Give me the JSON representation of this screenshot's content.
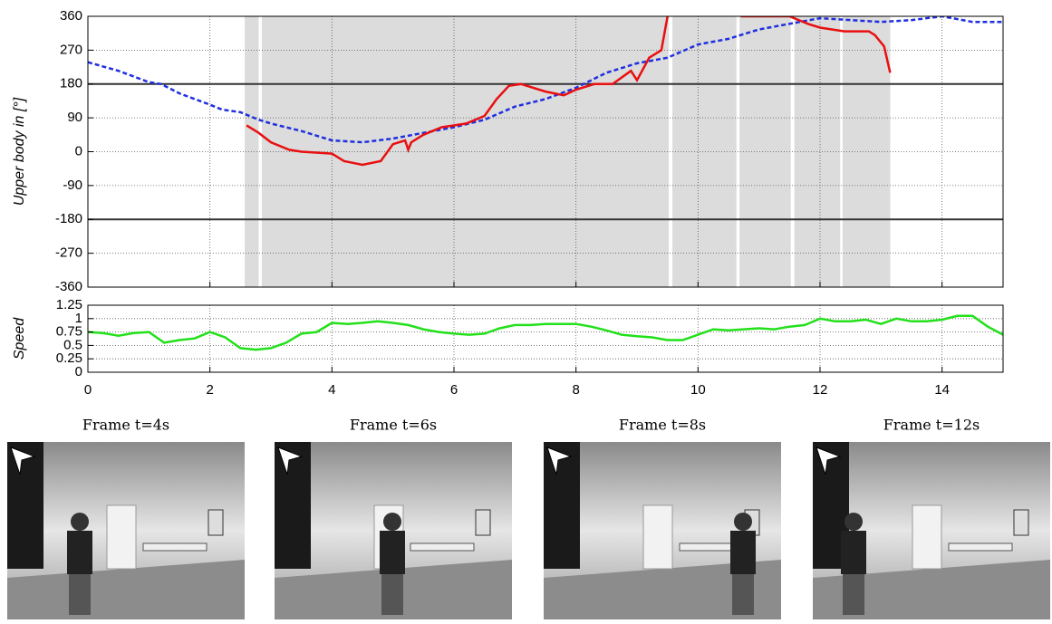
{
  "chart_data": [
    {
      "type": "line",
      "ylabel": "Upper body in [°]",
      "xlim": [
        0,
        15
      ],
      "xticks": [
        0,
        2,
        4,
        6,
        8,
        10,
        12,
        14
      ],
      "ylim": [
        -360,
        360
      ],
      "yticks": [
        -360,
        -270,
        -180,
        -90,
        0,
        90,
        180,
        270,
        360
      ],
      "reference_lines": [
        -180,
        180
      ],
      "grid": true,
      "shaded_intervals": [
        [
          2.57,
          2.8
        ],
        [
          2.85,
          9.52
        ],
        [
          9.58,
          10.63
        ],
        [
          10.68,
          11.52
        ],
        [
          11.58,
          12.33
        ],
        [
          12.37,
          13.15
        ]
      ],
      "shade_color": "#dcdcdc",
      "series": [
        {
          "color": "#1f2fe0",
          "dash": true,
          "x": [
            0,
            0.5,
            1,
            1.2,
            1.5,
            2,
            2.2,
            2.5,
            2.8,
            3,
            3.5,
            4,
            4.5,
            5,
            5.5,
            6,
            6.5,
            7,
            7.5,
            8,
            8.5,
            9,
            9.5,
            10,
            10.5,
            11,
            11.5,
            12,
            12.5,
            13,
            13.5,
            14,
            14.5,
            15
          ],
          "values": [
            238,
            215,
            185,
            180,
            155,
            125,
            112,
            105,
            85,
            75,
            55,
            30,
            25,
            35,
            50,
            65,
            85,
            120,
            140,
            170,
            210,
            235,
            250,
            285,
            300,
            325,
            340,
            355,
            350,
            345,
            350,
            360,
            345,
            345
          ]
        },
        {
          "color": "#e81010",
          "dash": false,
          "x": [
            2.6,
            2.8,
            3,
            3.3,
            3.5,
            4,
            4.2,
            4.5,
            4.8,
            5,
            5.2,
            5.25,
            5.3,
            5.5,
            5.8,
            6.2,
            6.5,
            6.7,
            6.9,
            7.1,
            7.5,
            7.8,
            8,
            8.3,
            8.6,
            8.9,
            9.0,
            9.2,
            9.4,
            9.5,
            10.3,
            10.7,
            10.9,
            11.5,
            11.8,
            12,
            12.4,
            12.8,
            12.9,
            13.05,
            13.15
          ],
          "values": [
            70,
            50,
            25,
            5,
            0,
            -5,
            -25,
            -35,
            -25,
            20,
            30,
            5,
            25,
            45,
            65,
            75,
            95,
            140,
            175,
            180,
            160,
            150,
            165,
            180,
            180,
            215,
            190,
            250,
            270,
            360,
            null,
            360,
            360,
            360,
            340,
            330,
            320,
            320,
            310,
            280,
            210
          ]
        }
      ]
    },
    {
      "type": "line",
      "ylabel": "Speed",
      "xlim": [
        0,
        15
      ],
      "xticks": [
        0,
        2,
        4,
        6,
        8,
        10,
        12,
        14
      ],
      "ylim": [
        0,
        1.25
      ],
      "yticks": [
        0,
        0.25,
        0.5,
        0.75,
        1,
        1.25
      ],
      "grid": true,
      "series": [
        {
          "color": "#22e01a",
          "dash": false,
          "x": [
            0,
            0.25,
            0.5,
            0.75,
            1,
            1.25,
            1.5,
            1.75,
            2,
            2.25,
            2.5,
            2.75,
            3,
            3.25,
            3.5,
            3.75,
            4,
            4.25,
            4.5,
            4.75,
            5,
            5.25,
            5.5,
            5.75,
            6,
            6.25,
            6.5,
            6.75,
            7,
            7.25,
            7.5,
            7.75,
            8,
            8.25,
            8.5,
            8.75,
            9,
            9.25,
            9.5,
            9.75,
            10,
            10.25,
            10.5,
            10.75,
            11,
            11.25,
            11.5,
            11.75,
            12,
            12.25,
            12.5,
            12.75,
            13,
            13.25,
            13.5,
            13.75,
            14,
            14.25,
            14.5,
            14.75,
            15
          ],
          "values": [
            0.75,
            0.73,
            0.68,
            0.73,
            0.75,
            0.55,
            0.6,
            0.63,
            0.75,
            0.65,
            0.45,
            0.42,
            0.45,
            0.55,
            0.72,
            0.75,
            0.92,
            0.9,
            0.92,
            0.95,
            0.92,
            0.88,
            0.8,
            0.75,
            0.72,
            0.7,
            0.72,
            0.82,
            0.88,
            0.88,
            0.9,
            0.9,
            0.9,
            0.85,
            0.78,
            0.7,
            0.67,
            0.65,
            0.6,
            0.6,
            0.7,
            0.8,
            0.78,
            0.8,
            0.82,
            0.8,
            0.85,
            0.88,
            1.0,
            0.95,
            0.95,
            0.98,
            0.9,
            1.0,
            0.95,
            0.95,
            0.98,
            1.05,
            1.05,
            0.85,
            0.7
          ]
        }
      ]
    }
  ],
  "frames": [
    {
      "caption": "Frame t=4s"
    },
    {
      "caption": "Frame t=6s"
    },
    {
      "caption": "Frame t=8s"
    },
    {
      "caption": "Frame t=12s"
    }
  ]
}
